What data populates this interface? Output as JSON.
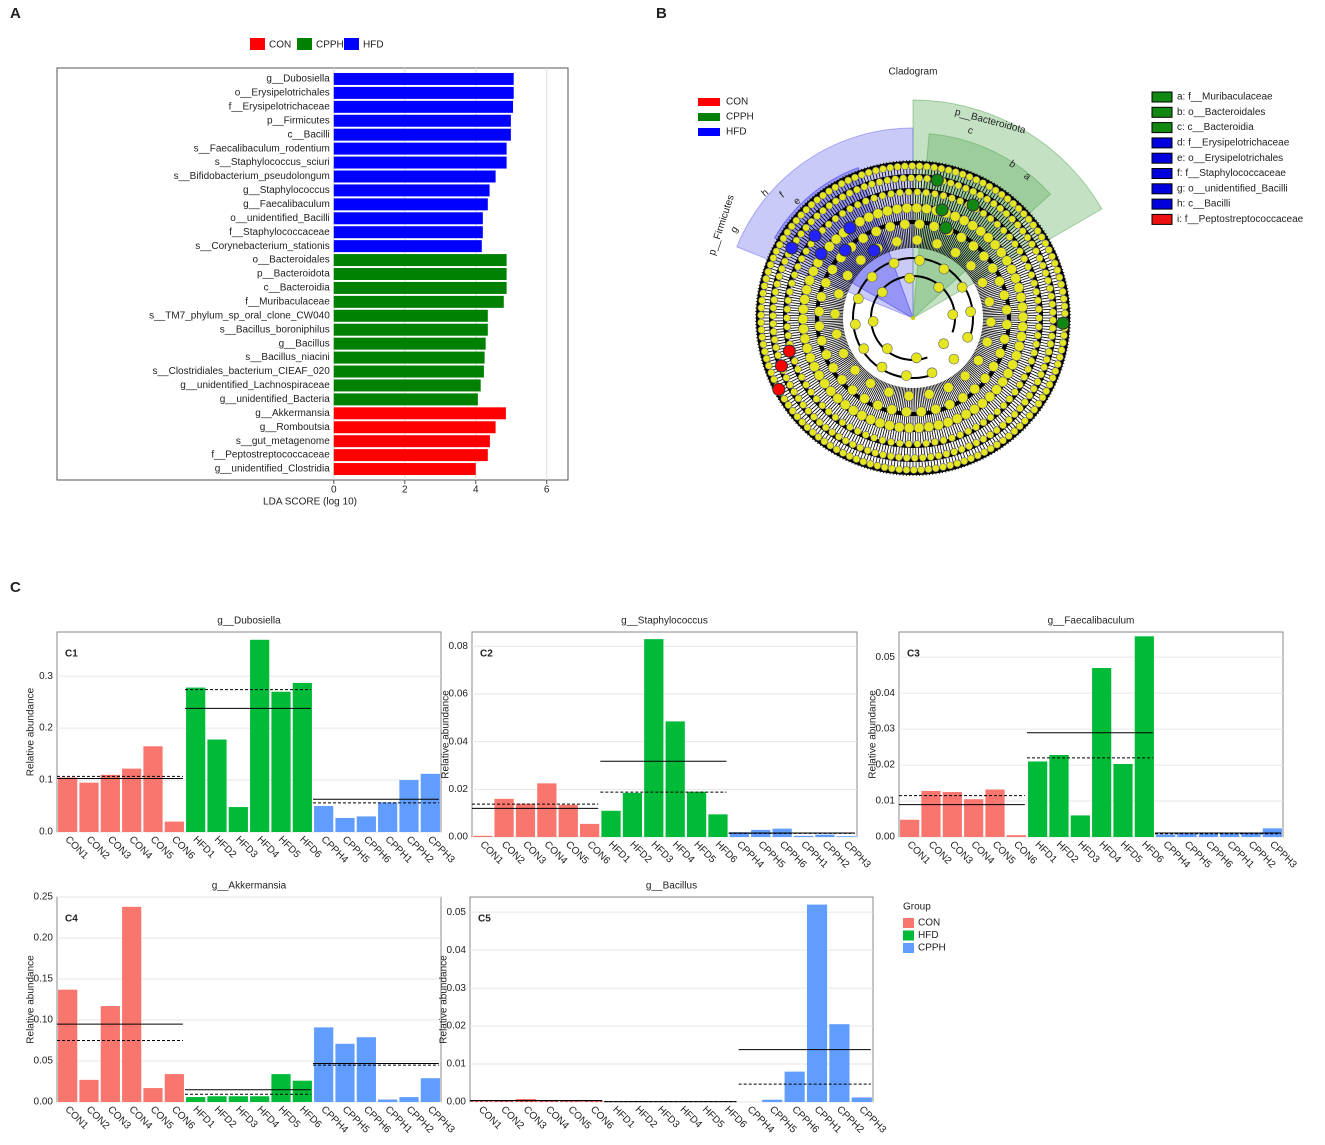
{
  "panels": [
    "A",
    "B",
    "C"
  ],
  "chart_data": [
    {
      "type": "barh",
      "legend": [
        {
          "name": "CON",
          "color": "#ff0000"
        },
        {
          "name": "CPPH",
          "color": "#008000"
        },
        {
          "name": "HFD",
          "color": "#0000ff"
        }
      ],
      "categories": [
        "g__Dubosiella",
        "o__Erysipelotrichales",
        "f__Erysipelotrichaceae",
        "p__Firmicutes",
        "c__Bacilli",
        "s__Faecalibaculum_rodentium",
        "s__Staphylococcus_sciuri",
        "s__Bifidobacterium_pseudolongum",
        "g__Staphylococcus",
        "g__Faecalibaculum",
        "o__unidentified_Bacilli",
        "f__Staphylococcaceae",
        "s__Corynebacterium_stationis",
        "o__Bacteroidales",
        "p__Bacteroidota",
        "c__Bacteroidia",
        "f__Muribaculaceae",
        "s__TM7_phylum_sp_oral_clone_CW040",
        "s__Bacillus_boroniphilus",
        "g__Bacillus",
        "s__Bacillus_niacini",
        "s__Clostridiales_bacterium_CIEAF_020",
        "g__unidentified_Lachnospiraceae",
        "g__unidentified_Bacteria",
        "g__Akkermansia",
        "g__Romboutsia",
        "s__gut_metagenome",
        "f__Peptostreptococcaceae",
        "g__unidentified_Clostridia"
      ],
      "values": [
        5.07,
        5.07,
        5.05,
        4.99,
        4.99,
        4.87,
        4.87,
        4.56,
        4.39,
        4.34,
        4.2,
        4.2,
        4.17,
        4.87,
        4.87,
        4.87,
        4.79,
        4.34,
        4.34,
        4.28,
        4.25,
        4.23,
        4.14,
        4.06,
        4.85,
        4.56,
        4.4,
        4.34,
        4.0
      ],
      "bar_colors": [
        "#0000ff",
        "#0000ff",
        "#0000ff",
        "#0000ff",
        "#0000ff",
        "#0000ff",
        "#0000ff",
        "#0000ff",
        "#0000ff",
        "#0000ff",
        "#0000ff",
        "#0000ff",
        "#0000ff",
        "#008000",
        "#008000",
        "#008000",
        "#008000",
        "#008000",
        "#008000",
        "#008000",
        "#008000",
        "#008000",
        "#008000",
        "#008000",
        "#ff0000",
        "#ff0000",
        "#ff0000",
        "#ff0000",
        "#ff0000"
      ],
      "xlabel": "LDA SCORE (log 10)",
      "xlim": [
        -7.8,
        6.6
      ],
      "xticks": [
        0,
        2,
        4,
        6
      ],
      "grid": true
    },
    {
      "type": "cladogram",
      "title": "Cladogram",
      "legend": [
        {
          "name": "CON",
          "color": "#ff0000"
        },
        {
          "name": "CPPH",
          "color": "#008000"
        },
        {
          "name": "HFD",
          "color": "#0000ff"
        }
      ],
      "key": [
        {
          "label": "a: f__Muribaculaceae",
          "color": "#118811"
        },
        {
          "label": "b: o__Bacteroidales",
          "color": "#118811"
        },
        {
          "label": "c: c__Bacteroidia",
          "color": "#118811"
        },
        {
          "label": "d: f__Erysipelotrichaceae",
          "color": "#0000dd"
        },
        {
          "label": "e: o__Erysipelotrichales",
          "color": "#0000dd"
        },
        {
          "label": "f: f__Staphylococcaceae",
          "color": "#0000dd"
        },
        {
          "label": "g: o__unidentified_Bacilli",
          "color": "#0000dd"
        },
        {
          "label": "h: c__Bacilli",
          "color": "#0000dd"
        },
        {
          "label": "i: f__Peptostreptococcaceae",
          "color": "#ee1111"
        }
      ],
      "clade_labels": [
        "p__Bacteroidota",
        "c",
        "b",
        "a",
        "p__Firmicutes",
        "h",
        "g",
        "e",
        "f"
      ]
    },
    {
      "type": "bar",
      "title": "g__Dubosiella",
      "tag": "C1",
      "ylabel": "Relative abundance",
      "ylim": [
        0,
        0.385
      ],
      "yticks": [
        {
          "value": 0,
          "label": "0.0"
        },
        {
          "value": 0.1,
          "label": "0.1"
        },
        {
          "value": 0.2,
          "label": "0.2"
        },
        {
          "value": 0.3,
          "label": "0.3"
        }
      ],
      "series": [
        {
          "name": "CON",
          "color": "#f8766d",
          "categories": [
            "CON1",
            "CON2",
            "CON3",
            "CON4",
            "CON5",
            "CON6"
          ],
          "values": [
            0.105,
            0.095,
            0.11,
            0.122,
            0.165,
            0.02
          ],
          "mean": 0.103,
          "median": 0.107
        },
        {
          "name": "HFD",
          "color": "#00ba38",
          "categories": [
            "HFD1",
            "HFD2",
            "HFD3",
            "HFD4",
            "HFD5",
            "HFD6"
          ],
          "values": [
            0.278,
            0.178,
            0.048,
            0.37,
            0.27,
            0.287
          ],
          "mean": 0.238,
          "median": 0.274
        },
        {
          "name": "CPPH",
          "color": "#619cff",
          "categories": [
            "CPPH4",
            "CPPH5",
            "CPPH6",
            "CPPH1",
            "CPPH2",
            "CPPH3"
          ],
          "values": [
            0.05,
            0.027,
            0.03,
            0.057,
            0.1,
            0.112
          ],
          "mean": 0.063,
          "median": 0.056
        }
      ]
    },
    {
      "type": "bar",
      "title": "g__Staphylococcus",
      "tag": "C2",
      "ylabel": "Relative abundance",
      "ylim": [
        0,
        0.086
      ],
      "yticks": [
        {
          "value": 0,
          "label": "0.00"
        },
        {
          "value": 0.02,
          "label": "0.02"
        },
        {
          "value": 0.04,
          "label": "0.04"
        },
        {
          "value": 0.06,
          "label": "0.06"
        },
        {
          "value": 0.08,
          "label": "0.08"
        }
      ],
      "series": [
        {
          "name": "CON",
          "color": "#f8766d",
          "categories": [
            "CON1",
            "CON2",
            "CON3",
            "CON4",
            "CON5",
            "CON6"
          ],
          "values": [
            0.0005,
            0.016,
            0.014,
            0.0225,
            0.0135,
            0.0055
          ],
          "mean": 0.012,
          "median": 0.0138
        },
        {
          "name": "HFD",
          "color": "#00ba38",
          "categories": [
            "HFD1",
            "HFD2",
            "HFD3",
            "HFD4",
            "HFD5",
            "HFD6"
          ],
          "values": [
            0.011,
            0.0185,
            0.083,
            0.0485,
            0.019,
            0.0095
          ],
          "mean": 0.0318,
          "median": 0.0188
        },
        {
          "name": "CPPH",
          "color": "#619cff",
          "categories": [
            "CPPH4",
            "CPPH5",
            "CPPH6",
            "CPPH1",
            "CPPH2",
            "CPPH3"
          ],
          "values": [
            0.002,
            0.003,
            0.0035,
            0.0005,
            0.001,
            0.0003
          ],
          "mean": 0.0017,
          "median": 0.0015
        }
      ]
    },
    {
      "type": "bar",
      "title": "g__Faecalibaculum",
      "tag": "C3",
      "ylabel": "Relative abundance",
      "ylim": [
        0,
        0.057
      ],
      "yticks": [
        {
          "value": 0,
          "label": "0.00"
        },
        {
          "value": 0.01,
          "label": "0.01"
        },
        {
          "value": 0.02,
          "label": "0.02"
        },
        {
          "value": 0.03,
          "label": "0.03"
        },
        {
          "value": 0.04,
          "label": "0.04"
        },
        {
          "value": 0.05,
          "label": "0.05"
        }
      ],
      "series": [
        {
          "name": "CON",
          "color": "#f8766d",
          "categories": [
            "CON1",
            "CON2",
            "CON3",
            "CON4",
            "CON5",
            "CON6"
          ],
          "values": [
            0.0048,
            0.0128,
            0.0125,
            0.0105,
            0.0132,
            0.0005
          ],
          "mean": 0.009,
          "median": 0.0115
        },
        {
          "name": "HFD",
          "color": "#00ba38",
          "categories": [
            "HFD1",
            "HFD2",
            "HFD3",
            "HFD4",
            "HFD5",
            "HFD6"
          ],
          "values": [
            0.021,
            0.0228,
            0.006,
            0.047,
            0.0203,
            0.0558
          ],
          "mean": 0.029,
          "median": 0.022
        },
        {
          "name": "CPPH",
          "color": "#619cff",
          "categories": [
            "CPPH4",
            "CPPH5",
            "CPPH6",
            "CPPH1",
            "CPPH2",
            "CPPH3"
          ],
          "values": [
            0.0007,
            0.0009,
            0.0009,
            0.0009,
            0.0011,
            0.0024
          ],
          "mean": 0.0011,
          "median": 0.0009
        }
      ]
    },
    {
      "type": "bar",
      "title": "g__Akkermansia",
      "tag": "C4",
      "ylabel": "Relative abundance",
      "ylim": [
        0,
        0.25
      ],
      "yticks": [
        {
          "value": 0,
          "label": "0.00"
        },
        {
          "value": 0.05,
          "label": "0.05"
        },
        {
          "value": 0.1,
          "label": "0.10"
        },
        {
          "value": 0.15,
          "label": "0.15"
        },
        {
          "value": 0.2,
          "label": "0.20"
        },
        {
          "value": 0.25,
          "label": "0.25"
        }
      ],
      "series": [
        {
          "name": "CON",
          "color": "#f8766d",
          "categories": [
            "CON1",
            "CON2",
            "CON3",
            "CON4",
            "CON5",
            "CON6"
          ],
          "values": [
            0.137,
            0.027,
            0.117,
            0.238,
            0.017,
            0.034
          ],
          "mean": 0.095,
          "median": 0.075
        },
        {
          "name": "HFD",
          "color": "#00ba38",
          "categories": [
            "HFD1",
            "HFD2",
            "HFD3",
            "HFD4",
            "HFD5",
            "HFD6"
          ],
          "values": [
            0.006,
            0.007,
            0.007,
            0.007,
            0.034,
            0.026
          ],
          "mean": 0.015,
          "median": 0.0095
        },
        {
          "name": "CPPH",
          "color": "#619cff",
          "categories": [
            "CPPH4",
            "CPPH5",
            "CPPH6",
            "CPPH1",
            "CPPH2",
            "CPPH3"
          ],
          "values": [
            0.091,
            0.071,
            0.079,
            0.003,
            0.006,
            0.029
          ],
          "mean": 0.047,
          "median": 0.045
        }
      ]
    },
    {
      "type": "bar",
      "title": "g__Bacillus",
      "tag": "C5",
      "ylabel": "Relative abundance",
      "ylim": [
        0,
        0.054
      ],
      "yticks": [
        {
          "value": 0,
          "label": "0.00"
        },
        {
          "value": 0.01,
          "label": "0.01"
        },
        {
          "value": 0.02,
          "label": "0.02"
        },
        {
          "value": 0.03,
          "label": "0.03"
        },
        {
          "value": 0.04,
          "label": "0.04"
        },
        {
          "value": 0.05,
          "label": "0.05"
        }
      ],
      "legend_title": "Group",
      "legend": true,
      "series": [
        {
          "name": "CON",
          "color": "#f8766d",
          "categories": [
            "CON1",
            "CON2",
            "CON3",
            "CON4",
            "CON5",
            "CON6"
          ],
          "values": [
            0.0002,
            0.0003,
            0.0008,
            0.0004,
            0.0003,
            0.0003
          ],
          "mean": 0.0004,
          "median": 0.0003
        },
        {
          "name": "HFD",
          "color": "#00ba38",
          "categories": [
            "HFD1",
            "HFD2",
            "HFD3",
            "HFD4",
            "HFD5",
            "HFD6"
          ],
          "values": [
            0.0001,
            0.0002,
            0.0001,
            0.0001,
            0.0001,
            0
          ],
          "mean": 0.0001,
          "median": 0.0001
        },
        {
          "name": "CPPH",
          "color": "#619cff",
          "categories": [
            "CPPH4",
            "CPPH5",
            "CPPH6",
            "CPPH1",
            "CPPH2",
            "CPPH3"
          ],
          "values": [
            0,
            0.0006,
            0.008,
            0.052,
            0.0205,
            0.0012
          ],
          "mean": 0.0138,
          "median": 0.0047
        }
      ]
    }
  ]
}
